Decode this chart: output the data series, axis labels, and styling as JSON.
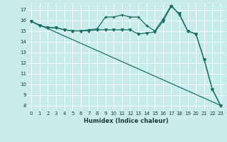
{
  "xlabel": "Humidex (Indice chaleur)",
  "bg_color": "#c8ecec",
  "grid_color": "#d0e8e8",
  "line_color": "#1a6e64",
  "xlim": [
    -0.5,
    23.5
  ],
  "ylim": [
    7.5,
    17.5
  ],
  "yticks": [
    8,
    9,
    10,
    11,
    12,
    13,
    14,
    15,
    16,
    17
  ],
  "xticks": [
    0,
    1,
    2,
    3,
    4,
    5,
    6,
    7,
    8,
    9,
    10,
    11,
    12,
    13,
    14,
    15,
    16,
    17,
    18,
    19,
    20,
    21,
    22,
    23
  ],
  "series1_y": [
    15.9,
    15.5,
    15.3,
    15.3,
    15.1,
    15.0,
    15.0,
    15.0,
    15.1,
    15.1,
    15.1,
    15.1,
    15.1,
    14.7,
    14.8,
    14.9,
    15.9,
    17.3,
    16.6,
    15.0,
    14.7,
    12.3,
    9.5,
    8.0
  ],
  "series2_y": [
    15.9,
    15.5,
    15.3,
    15.3,
    15.1,
    15.0,
    15.0,
    15.1,
    15.2,
    16.3,
    16.3,
    16.5,
    16.3,
    16.3,
    15.5,
    15.0,
    16.1,
    17.4,
    16.5,
    15.0,
    14.7,
    12.3,
    9.5,
    8.0
  ],
  "series3_x": [
    0,
    23
  ],
  "series3_y": [
    15.9,
    8.0
  ],
  "xlabel_fontsize": 6,
  "tick_fontsize": 5,
  "linewidth": 0.9
}
